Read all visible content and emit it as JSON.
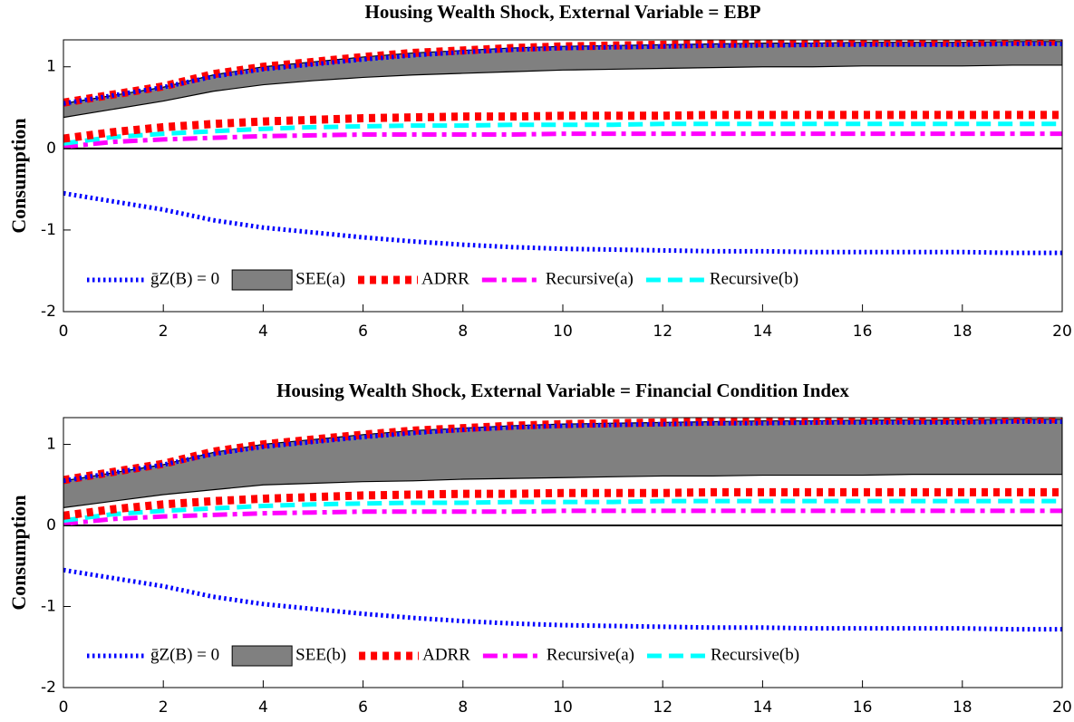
{
  "chart_data": [
    {
      "type": "line",
      "title": "Housing Wealth Shock, External Variable = EBP",
      "ylabel": "Consumption",
      "x": [
        0,
        1,
        2,
        3,
        4,
        5,
        6,
        7,
        8,
        9,
        10,
        11,
        12,
        13,
        14,
        15,
        16,
        17,
        18,
        19,
        20
      ],
      "xlim": [
        0,
        20
      ],
      "xticks": [
        0,
        2,
        4,
        6,
        8,
        10,
        12,
        14,
        16,
        18,
        20
      ],
      "ylim": [
        -2,
        1.33
      ],
      "yticks": [
        -2,
        -1,
        0,
        1
      ],
      "reference_line": 0,
      "series": [
        {
          "name": "ḡZ(B) = 0",
          "color": "#0000ff",
          "linestyle": "dotted",
          "values": [
            -0.55,
            -0.65,
            -0.75,
            -0.88,
            -0.97,
            -1.03,
            -1.09,
            -1.14,
            -1.18,
            -1.21,
            -1.23,
            -1.24,
            -1.25,
            -1.26,
            -1.26,
            -1.27,
            -1.27,
            -1.27,
            -1.27,
            -1.28,
            -1.28
          ]
        },
        {
          "name": "SEE(a)",
          "color": "#808080",
          "kind": "band",
          "upper": [
            0.55,
            0.65,
            0.75,
            0.9,
            1.0,
            1.06,
            1.12,
            1.17,
            1.2,
            1.23,
            1.25,
            1.26,
            1.27,
            1.28,
            1.29,
            1.29,
            1.3,
            1.3,
            1.3,
            1.31,
            1.31
          ],
          "lower": [
            0.38,
            0.48,
            0.58,
            0.7,
            0.78,
            0.83,
            0.87,
            0.9,
            0.92,
            0.94,
            0.96,
            0.97,
            0.98,
            0.99,
            1.0,
            1.0,
            1.01,
            1.01,
            1.01,
            1.02,
            1.02
          ]
        },
        {
          "name": "ADRR",
          "color": "#ff0000",
          "linestyle": "square-dotted",
          "values": [
            0.56,
            0.66,
            0.76,
            0.91,
            1.0,
            1.06,
            1.12,
            1.17,
            1.2,
            1.23,
            1.25,
            1.26,
            1.27,
            1.28,
            1.29,
            1.29,
            1.3,
            1.3,
            1.3,
            1.31,
            1.31
          ]
        },
        {
          "name": "Recursive(a)",
          "color": "#ff00ff",
          "linestyle": "dashdot",
          "values": [
            0.02,
            0.08,
            0.11,
            0.13,
            0.15,
            0.16,
            0.17,
            0.17,
            0.17,
            0.17,
            0.18,
            0.18,
            0.18,
            0.18,
            0.18,
            0.18,
            0.18,
            0.18,
            0.18,
            0.18,
            0.18
          ]
        },
        {
          "name": "Recursive(b)",
          "color": "#00ffff",
          "linestyle": "dashed",
          "values": [
            0.06,
            0.14,
            0.18,
            0.21,
            0.24,
            0.26,
            0.27,
            0.28,
            0.28,
            0.29,
            0.29,
            0.29,
            0.3,
            0.3,
            0.3,
            0.3,
            0.3,
            0.3,
            0.3,
            0.3,
            0.3
          ]
        },
        {
          "color": "#ff0000",
          "linestyle": "square-dotted",
          "values": [
            0.12,
            0.2,
            0.26,
            0.3,
            0.33,
            0.35,
            0.37,
            0.38,
            0.39,
            0.39,
            0.4,
            0.4,
            0.4,
            0.41,
            0.41,
            0.41,
            0.41,
            0.41,
            0.41,
            0.41,
            0.41
          ]
        },
        {
          "color": "#0000ff",
          "linestyle": "dotted",
          "values": [
            0.55,
            0.65,
            0.75,
            0.88,
            0.97,
            1.03,
            1.09,
            1.14,
            1.18,
            1.21,
            1.23,
            1.24,
            1.25,
            1.26,
            1.26,
            1.27,
            1.27,
            1.27,
            1.27,
            1.28,
            1.28
          ]
        }
      ]
    },
    {
      "type": "line",
      "title": "Housing Wealth Shock, External Variable = Financial Condition Index",
      "ylabel": "Consumption",
      "x": [
        0,
        1,
        2,
        3,
        4,
        5,
        6,
        7,
        8,
        9,
        10,
        11,
        12,
        13,
        14,
        15,
        16,
        17,
        18,
        19,
        20
      ],
      "xlim": [
        0,
        20
      ],
      "xticks": [
        0,
        2,
        4,
        6,
        8,
        10,
        12,
        14,
        16,
        18,
        20
      ],
      "ylim": [
        -2,
        1.33
      ],
      "yticks": [
        -2,
        -1,
        0,
        1
      ],
      "reference_line": 0,
      "series": [
        {
          "name": "ḡZ(B) = 0",
          "color": "#0000ff",
          "linestyle": "dotted",
          "values": [
            -0.55,
            -0.65,
            -0.75,
            -0.88,
            -0.97,
            -1.03,
            -1.09,
            -1.14,
            -1.18,
            -1.21,
            -1.23,
            -1.24,
            -1.25,
            -1.26,
            -1.26,
            -1.27,
            -1.27,
            -1.27,
            -1.27,
            -1.28,
            -1.28
          ]
        },
        {
          "name": "SEE(b)",
          "color": "#808080",
          "kind": "band",
          "upper": [
            0.55,
            0.65,
            0.75,
            0.9,
            1.0,
            1.06,
            1.12,
            1.17,
            1.2,
            1.23,
            1.25,
            1.26,
            1.27,
            1.28,
            1.29,
            1.29,
            1.3,
            1.3,
            1.3,
            1.31,
            1.31
          ],
          "lower": [
            0.22,
            0.3,
            0.38,
            0.44,
            0.5,
            0.52,
            0.54,
            0.55,
            0.57,
            0.58,
            0.59,
            0.6,
            0.61,
            0.61,
            0.62,
            0.62,
            0.62,
            0.63,
            0.63,
            0.63,
            0.63
          ]
        },
        {
          "name": "ADRR",
          "color": "#ff0000",
          "linestyle": "square-dotted",
          "values": [
            0.56,
            0.66,
            0.76,
            0.91,
            1.0,
            1.06,
            1.12,
            1.17,
            1.2,
            1.23,
            1.25,
            1.26,
            1.27,
            1.28,
            1.29,
            1.29,
            1.3,
            1.3,
            1.3,
            1.31,
            1.31
          ]
        },
        {
          "name": "Recursive(a)",
          "color": "#ff00ff",
          "linestyle": "dashdot",
          "values": [
            0.02,
            0.08,
            0.11,
            0.13,
            0.15,
            0.16,
            0.17,
            0.17,
            0.17,
            0.17,
            0.18,
            0.18,
            0.18,
            0.18,
            0.18,
            0.18,
            0.18,
            0.18,
            0.18,
            0.18,
            0.18
          ]
        },
        {
          "name": "Recursive(b)",
          "color": "#00ffff",
          "linestyle": "dashed",
          "values": [
            0.06,
            0.14,
            0.18,
            0.21,
            0.24,
            0.26,
            0.27,
            0.28,
            0.28,
            0.29,
            0.29,
            0.29,
            0.3,
            0.3,
            0.3,
            0.3,
            0.3,
            0.3,
            0.3,
            0.3,
            0.3
          ]
        },
        {
          "color": "#ff0000",
          "linestyle": "square-dotted",
          "values": [
            0.12,
            0.2,
            0.26,
            0.3,
            0.33,
            0.35,
            0.37,
            0.38,
            0.39,
            0.39,
            0.4,
            0.4,
            0.4,
            0.41,
            0.41,
            0.41,
            0.41,
            0.41,
            0.41,
            0.41,
            0.41
          ]
        },
        {
          "color": "#0000ff",
          "linestyle": "dotted",
          "values": [
            0.55,
            0.65,
            0.75,
            0.88,
            0.97,
            1.03,
            1.09,
            1.14,
            1.18,
            1.21,
            1.23,
            1.24,
            1.25,
            1.26,
            1.26,
            1.27,
            1.27,
            1.27,
            1.27,
            1.28,
            1.28
          ]
        }
      ]
    }
  ]
}
